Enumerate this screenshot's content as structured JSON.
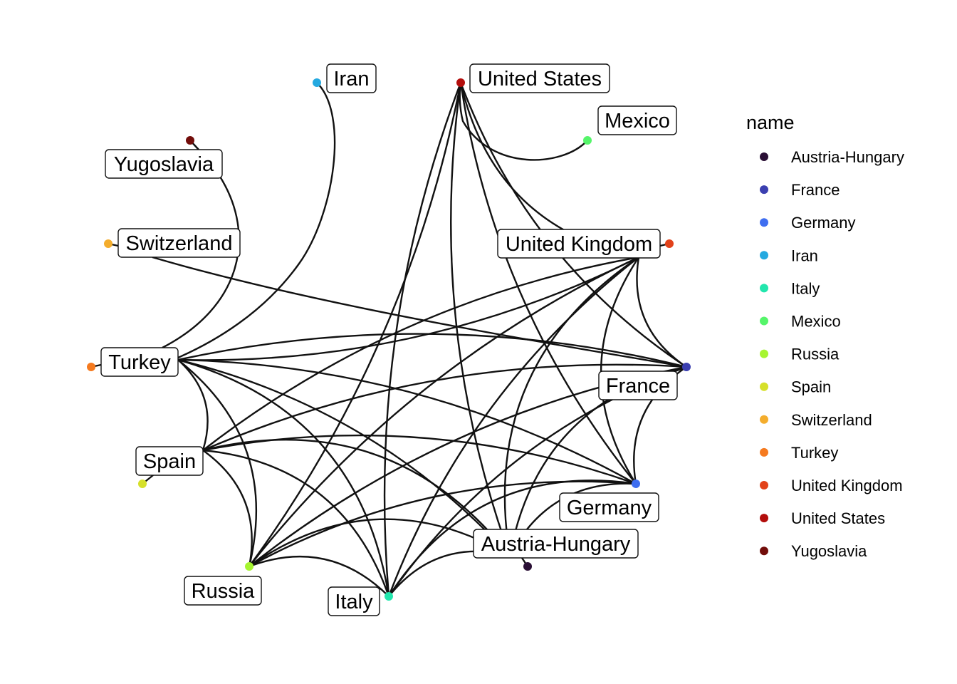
{
  "graph": {
    "type": "arc-network",
    "nodes": [
      {
        "id": "Austria-Hungary",
        "color": "#2a0f35"
      },
      {
        "id": "France",
        "color": "#3b3fb0"
      },
      {
        "id": "Germany",
        "color": "#3f6ef0"
      },
      {
        "id": "Iran",
        "color": "#25a9e0"
      },
      {
        "id": "Italy",
        "color": "#22e6ad"
      },
      {
        "id": "Mexico",
        "color": "#55f56a"
      },
      {
        "id": "Russia",
        "color": "#a6f531"
      },
      {
        "id": "Spain",
        "color": "#d6e02a"
      },
      {
        "id": "Switzerland",
        "color": "#f4ad2d"
      },
      {
        "id": "Turkey",
        "color": "#f57a1f"
      },
      {
        "id": "United Kingdom",
        "color": "#e2421a"
      },
      {
        "id": "United States",
        "color": "#b30e0c"
      },
      {
        "id": "Yugoslavia",
        "color": "#720d0a"
      }
    ],
    "edges": [
      [
        "Yugoslavia",
        "Turkey"
      ],
      [
        "Iran",
        "Turkey"
      ],
      [
        "Switzerland",
        "France"
      ],
      [
        "Mexico",
        "United States"
      ],
      [
        "United States",
        "United Kingdom"
      ],
      [
        "United States",
        "France"
      ],
      [
        "United States",
        "Germany"
      ],
      [
        "United States",
        "Austria-Hungary"
      ],
      [
        "United States",
        "Italy"
      ],
      [
        "United States",
        "Russia"
      ],
      [
        "United Kingdom",
        "France"
      ],
      [
        "United Kingdom",
        "Germany"
      ],
      [
        "United Kingdom",
        "Austria-Hungary"
      ],
      [
        "United Kingdom",
        "Italy"
      ],
      [
        "United Kingdom",
        "Russia"
      ],
      [
        "United Kingdom",
        "Spain"
      ],
      [
        "United Kingdom",
        "Turkey"
      ],
      [
        "France",
        "Germany"
      ],
      [
        "France",
        "Austria-Hungary"
      ],
      [
        "France",
        "Italy"
      ],
      [
        "France",
        "Russia"
      ],
      [
        "France",
        "Spain"
      ],
      [
        "France",
        "Turkey"
      ],
      [
        "Germany",
        "Austria-Hungary"
      ],
      [
        "Germany",
        "Italy"
      ],
      [
        "Germany",
        "Russia"
      ],
      [
        "Germany",
        "Spain"
      ],
      [
        "Germany",
        "Turkey"
      ],
      [
        "Austria-Hungary",
        "Italy"
      ],
      [
        "Austria-Hungary",
        "Russia"
      ],
      [
        "Austria-Hungary",
        "Spain"
      ],
      [
        "Austria-Hungary",
        "Turkey"
      ],
      [
        "Italy",
        "Russia"
      ],
      [
        "Italy",
        "Spain"
      ],
      [
        "Italy",
        "Turkey"
      ],
      [
        "Russia",
        "Spain"
      ],
      [
        "Russia",
        "Turkey"
      ],
      [
        "Spain",
        "Turkey"
      ]
    ]
  },
  "legend": {
    "title": "name",
    "entries": [
      "Austria-Hungary",
      "France",
      "Germany",
      "Iran",
      "Italy",
      "Mexico",
      "Russia",
      "Spain",
      "Switzerland",
      "Turkey",
      "United Kingdom",
      "United States",
      "Yugoslavia"
    ]
  }
}
